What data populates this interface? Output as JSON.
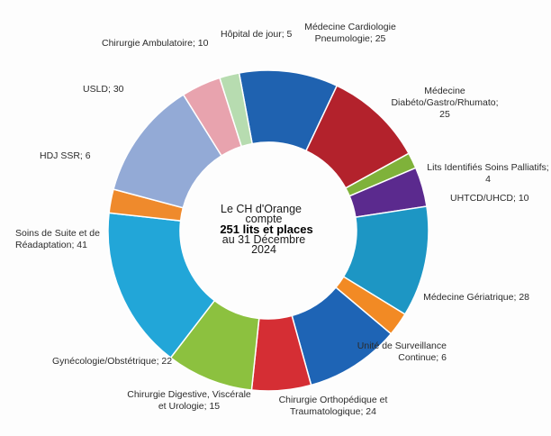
{
  "chart_data": {
    "type": "pie",
    "donut": true,
    "center_text": {
      "line1": "Le CH d'Orange",
      "line2": "compte",
      "line3": "251 lits et places",
      "line4": "au 31 Décembre",
      "line5": "2024"
    },
    "slices": [
      {
        "name": "Médecine Cardiologie Pneumologie",
        "value": 25,
        "label_lines": [
          "Médecine Cardiologie",
          "Pneumologie; 25"
        ],
        "color": "#1f62b0"
      },
      {
        "name": "Médecine Diabéto/Gastro/Rhumato",
        "value": 25,
        "label_lines": [
          "Médecine",
          "Diabéto/Gastro/Rhumato;",
          "25"
        ],
        "color": "#b3222c"
      },
      {
        "name": "Lits Identifiés Soins Palliatifs",
        "value": 4,
        "label_lines": [
          "Lits Identifiés Soins Palliatifs;",
          "4"
        ],
        "color": "#7fb23a"
      },
      {
        "name": "UHTCD/UHCD",
        "value": 10,
        "label_lines": [
          "UHTCD/UHCD; 10"
        ],
        "color": "#5b2a8e"
      },
      {
        "name": "Médecine Gériatrique",
        "value": 28,
        "label_lines": [
          "Médecine Gériatrique; 28"
        ],
        "color": "#1d96c4"
      },
      {
        "name": "Unité de Surveillance Continue",
        "value": 6,
        "label_lines": [
          "Unité de Surveillance",
          "Continue; 6"
        ],
        "color": "#f28a24"
      },
      {
        "name": "Chirurgie Orthopédique et Traumatologique",
        "value": 24,
        "label_lines": [
          "Chirurgie Orthopédique et",
          "Traumatologique; 24"
        ],
        "color": "#1e64b5"
      },
      {
        "name": "Chirurgie Digestive, Viscérale et Urologie",
        "value": 15,
        "label_lines": [
          "Chirurgie Digestive, Viscérale",
          "et Urologie; 15"
        ],
        "color": "#d52e34"
      },
      {
        "name": "Gynécologie/Obstétrique",
        "value": 22,
        "label_lines": [
          "Gynécologie/Obstétrique; 22"
        ],
        "color": "#8cc13f"
      },
      {
        "name": "Soins de Suite et de Réadaptation",
        "value": 41,
        "label_lines": [
          "Soins de Suite et de",
          "Réadaptation; 41"
        ],
        "color": "#22a6d8"
      },
      {
        "name": "HDJ SSR",
        "value": 6,
        "label_lines": [
          "HDJ SSR; 6"
        ],
        "color": "#ef8a2c"
      },
      {
        "name": "USLD",
        "value": 30,
        "label_lines": [
          "USLD; 30"
        ],
        "color": "#93aad6"
      },
      {
        "name": "Chirurgie Ambulatoire",
        "value": 10,
        "label_lines": [
          "Chirurgie Ambulatoire; 10"
        ],
        "color": "#e8a3ae"
      },
      {
        "name": "Hôpital de jour",
        "value": 5,
        "label_lines": [
          "Hôpital de jour; 5"
        ],
        "color": "#b7dcb0"
      }
    ]
  }
}
